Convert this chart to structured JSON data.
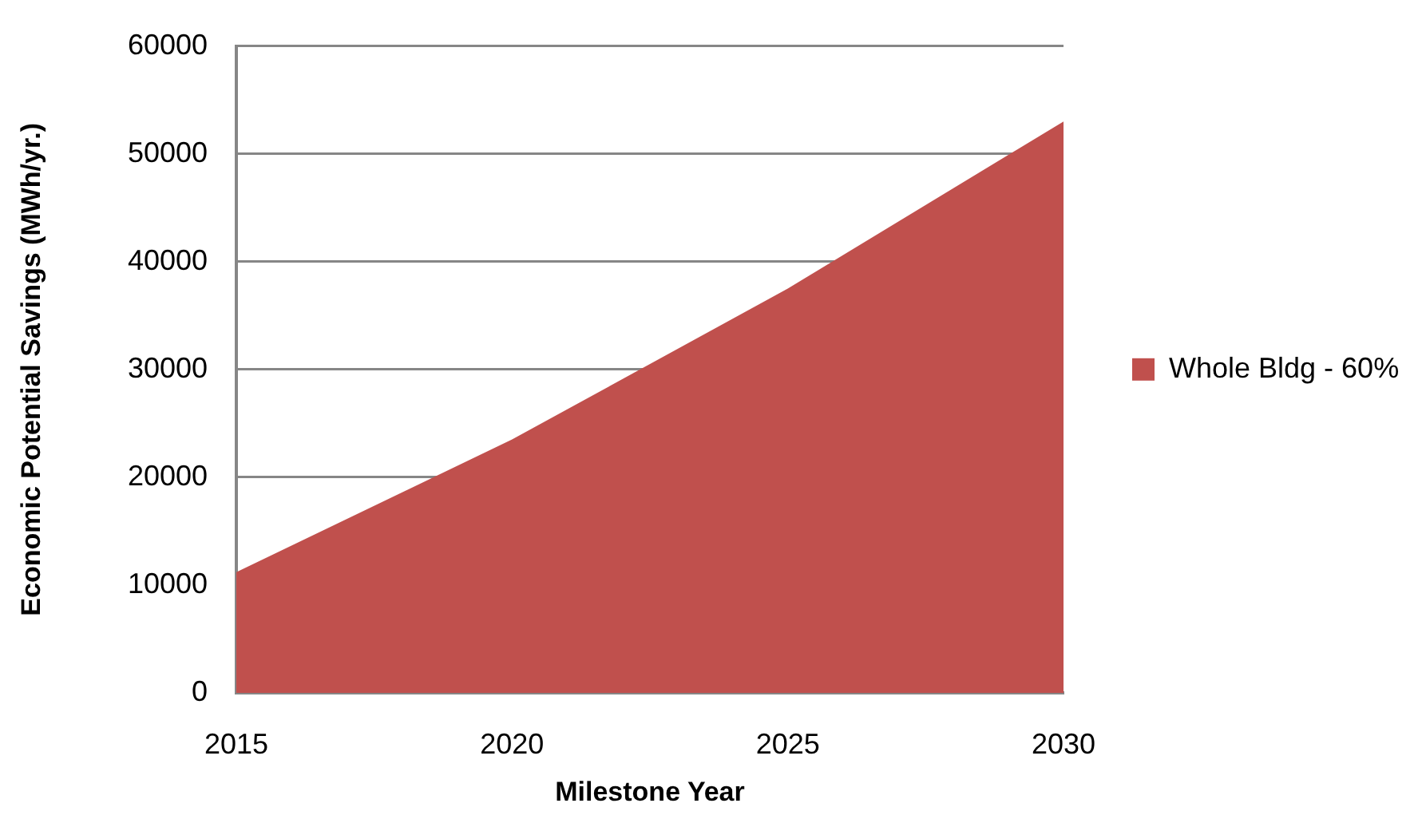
{
  "chart_data": {
    "type": "area",
    "xlabel": "Milestone Year",
    "ylabel": "Economic Potential Savings (MWh/yr.)",
    "categories": [
      "2015",
      "2020",
      "2025",
      "2030"
    ],
    "series": [
      {
        "name": "Whole Bldg - 60%",
        "color": "#c0504d",
        "values": [
          11200,
          23500,
          37500,
          53000
        ]
      }
    ],
    "ylim": [
      0,
      60000
    ],
    "yticks": [
      0,
      10000,
      20000,
      30000,
      40000,
      50000,
      60000
    ],
    "grid": "y",
    "legend": "right"
  }
}
